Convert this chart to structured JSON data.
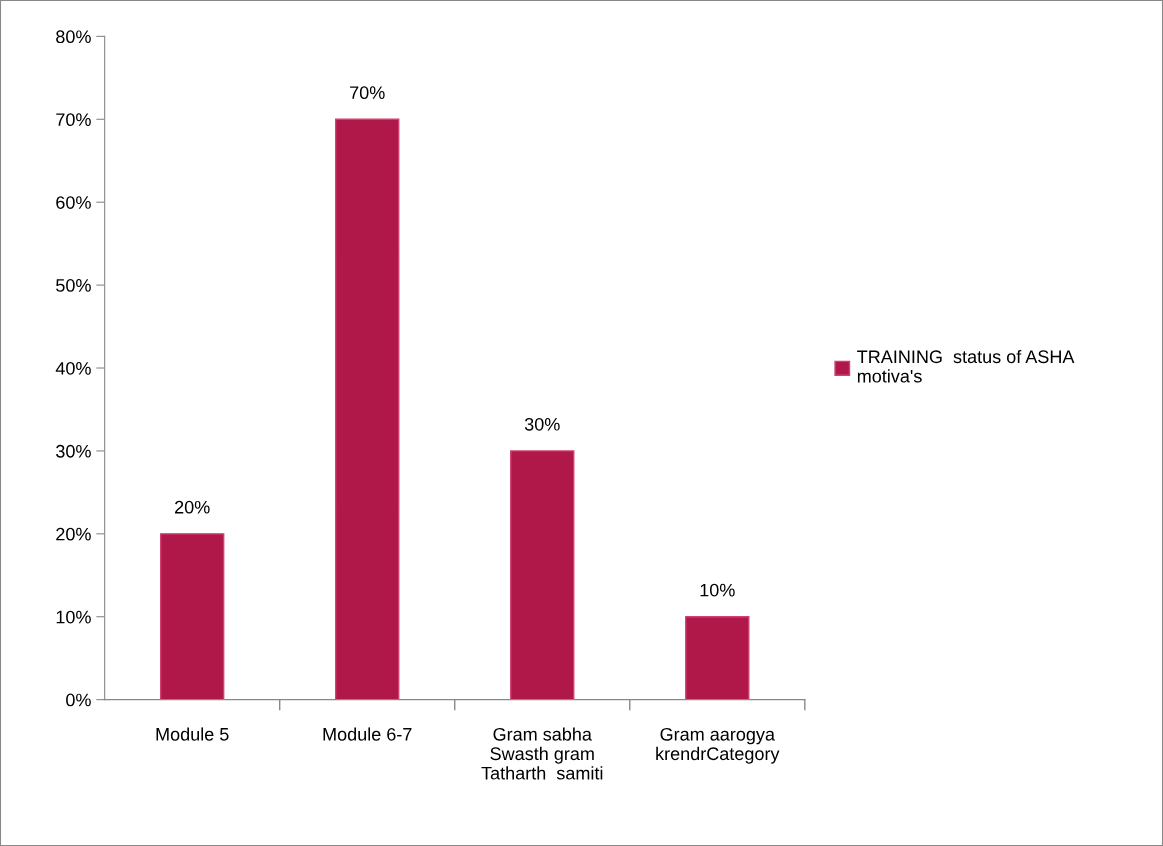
{
  "chart_data": {
    "type": "bar",
    "categories": [
      "Module 5",
      "Module 6-7",
      "Gram sabha\nSwasth gram\nTatharth  samiti",
      "Gram aarogya\nkrendrCategory"
    ],
    "series": [
      {
        "name": "TRAINING  status of ASHA\nmotiva's",
        "color": "#b0184a",
        "values": [
          20,
          70,
          30,
          10
        ]
      }
    ],
    "value_labels": [
      "20%",
      "70%",
      "30%",
      "10%"
    ],
    "ylim": [
      0,
      80
    ],
    "yticks": [
      {
        "value": 0,
        "label": "0%"
      },
      {
        "value": 10,
        "label": "10%"
      },
      {
        "value": 20,
        "label": "20%"
      },
      {
        "value": 30,
        "label": "30%"
      },
      {
        "value": 40,
        "label": "40%"
      },
      {
        "value": 50,
        "label": "50%"
      },
      {
        "value": 60,
        "label": "60%"
      },
      {
        "value": 70,
        "label": "70%"
      },
      {
        "value": 80,
        "label": "80%"
      }
    ],
    "grid": false,
    "legend": "right"
  }
}
